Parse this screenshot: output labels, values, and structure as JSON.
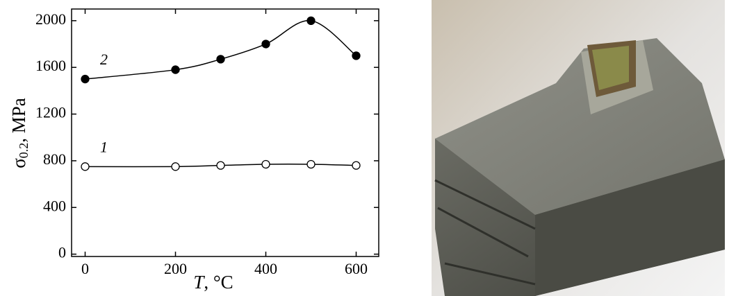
{
  "chart_data": {
    "type": "line",
    "xlabel": [
      "T",
      ", °C"
    ],
    "ylabel": [
      "σ",
      "0.2",
      ", MPa"
    ],
    "x": [
      0,
      200,
      300,
      400,
      500,
      600
    ],
    "series": [
      {
        "name": "1",
        "color": "#000000",
        "marker": "open",
        "values": [
          750,
          750,
          760,
          770,
          770,
          760
        ]
      },
      {
        "name": "2",
        "color": "#000000",
        "marker": "filled",
        "values": [
          1500,
          1580,
          1670,
          1800,
          2000,
          1700
        ]
      }
    ],
    "xlim": [
      -30,
      650
    ],
    "ylim": [
      -20,
      2100
    ],
    "xticks": [
      0,
      200,
      400,
      600
    ],
    "yticks": [
      0,
      400,
      800,
      1200,
      1600,
      2000
    ],
    "grid": false
  }
}
